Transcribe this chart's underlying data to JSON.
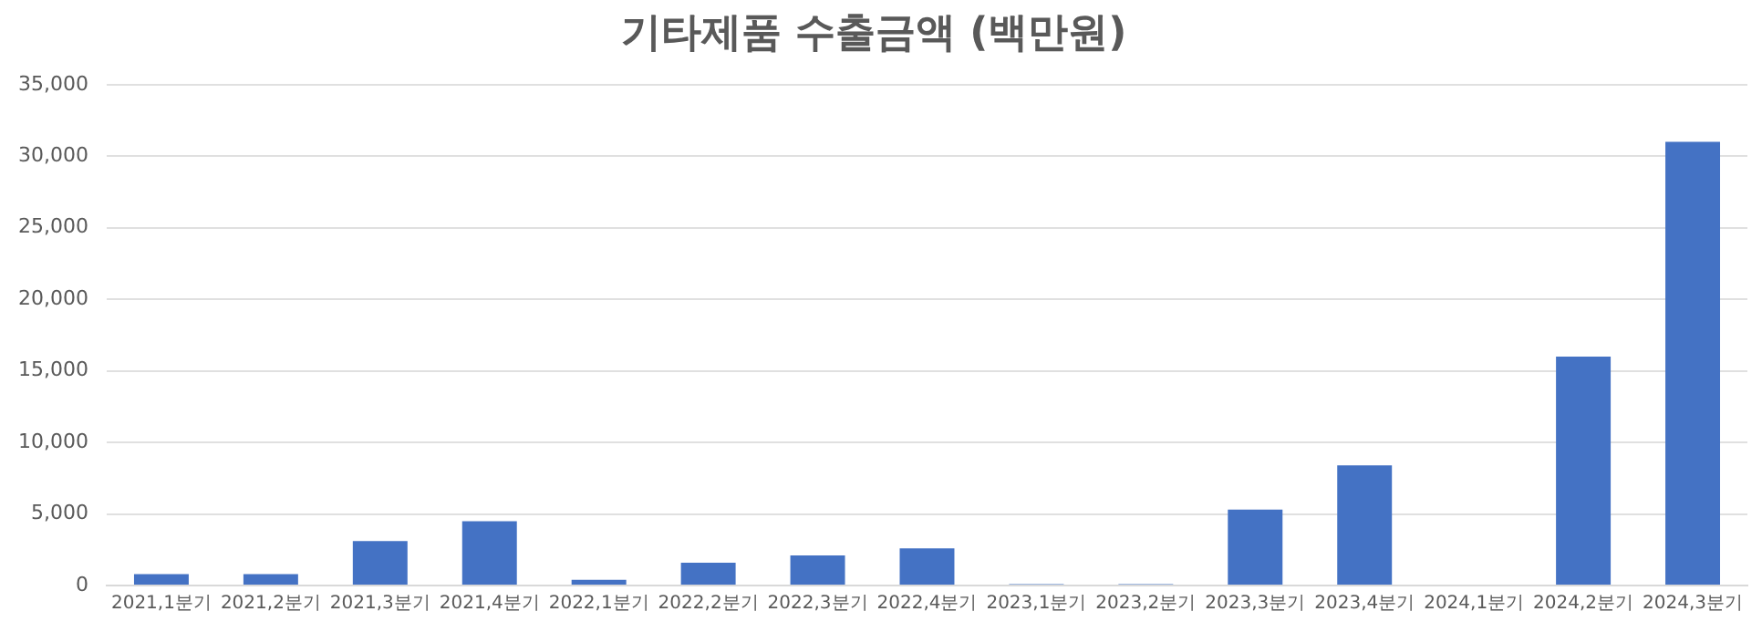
{
  "chart_data": {
    "type": "bar",
    "title": "기타제품 수출금액 (백만원)",
    "categories": [
      "2021,1분기",
      "2021,2분기",
      "2021,3분기",
      "2021,4분기",
      "2022,1분기",
      "2022,2분기",
      "2022,3분기",
      "2022,4분기",
      "2023,1분기",
      "2023,2분기",
      "2023,3분기",
      "2023,4분기",
      "2024,1분기",
      "2024,2분기",
      "2024,3분기"
    ],
    "values": [
      800,
      800,
      3100,
      4500,
      400,
      1600,
      2100,
      2600,
      100,
      100,
      5300,
      8400,
      0,
      16000,
      31000
    ],
    "color": "#4472c4",
    "ylim": [
      0,
      35000
    ],
    "yticks": [
      0,
      {
        "value": 5000,
        "label": "5,000"
      },
      {
        "value": 10000,
        "label": "10,000"
      },
      {
        "value": 15000,
        "label": "15,000"
      },
      {
        "value": 20000,
        "label": "20,000"
      },
      {
        "value": 25000,
        "label": "25,000"
      },
      {
        "value": 30000,
        "label": "30,000"
      },
      {
        "value": 35000,
        "label": "35,000"
      }
    ],
    "grid": "y",
    "legend": false
  }
}
